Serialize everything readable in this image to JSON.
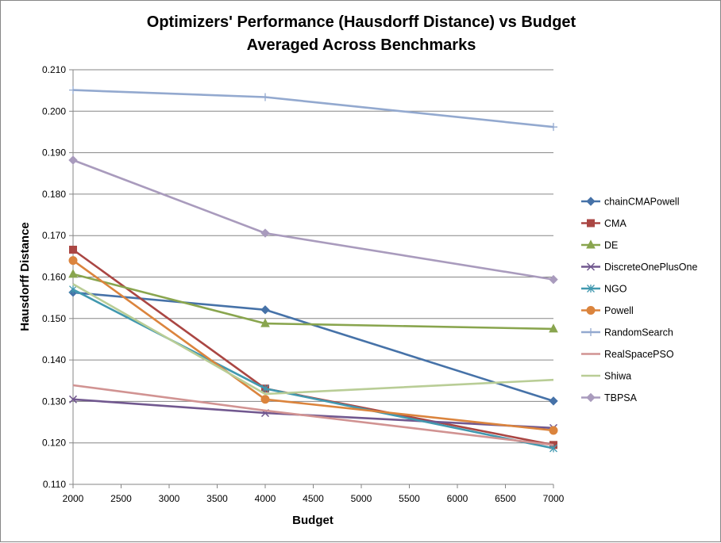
{
  "chart_data": {
    "type": "line",
    "title": "Optimizers' Performance (Hausdorff Distance) vs Budget",
    "subtitle": "Averaged Across Benchmarks",
    "xlabel": "Budget",
    "ylabel": "Hausdorff Distance",
    "xlim": [
      2000,
      7000
    ],
    "ylim": [
      0.11,
      0.21
    ],
    "x_ticks": [
      "2000",
      "2500",
      "3000",
      "3500",
      "4000",
      "4500",
      "5000",
      "5500",
      "6000",
      "6500",
      "7000"
    ],
    "y_ticks": [
      "0.110",
      "0.120",
      "0.130",
      "0.140",
      "0.150",
      "0.160",
      "0.170",
      "0.180",
      "0.190",
      "0.200",
      "0.210"
    ],
    "grid": "horizontal",
    "legend_position": "right",
    "x": [
      2000,
      4000,
      7000
    ],
    "series": [
      {
        "name": "chainCMAPowell",
        "values": [
          0.1563,
          0.1521,
          0.1301
        ],
        "color": "#4672A8",
        "marker": "diamond"
      },
      {
        "name": "CMA",
        "values": [
          0.1666,
          0.1331,
          0.1195
        ],
        "color": "#AA4643",
        "marker": "square"
      },
      {
        "name": "DE",
        "values": [
          0.1607,
          0.1488,
          0.1475
        ],
        "color": "#89A54E",
        "marker": "triangle"
      },
      {
        "name": "DiscreteOnePlusOne",
        "values": [
          0.1305,
          0.1272,
          0.1236
        ],
        "color": "#71588F",
        "marker": "x"
      },
      {
        "name": "NGO",
        "values": [
          0.157,
          0.1331,
          0.1187
        ],
        "color": "#4198AF",
        "marker": "star"
      },
      {
        "name": "Powell",
        "values": [
          0.164,
          0.1305,
          0.123
        ],
        "color": "#DB843D",
        "marker": "circle"
      },
      {
        "name": "RandomSearch",
        "values": [
          0.2051,
          0.2034,
          0.1962
        ],
        "color": "#93A9CF",
        "marker": "plus"
      },
      {
        "name": "RealSpacePSO",
        "values": [
          0.1339,
          0.1278,
          0.1195
        ],
        "color": "#D19392",
        "marker": "none"
      },
      {
        "name": "Shiwa",
        "values": [
          0.1583,
          0.1318,
          0.1352
        ],
        "color": "#B9CD96",
        "marker": "none"
      },
      {
        "name": "TBPSA",
        "values": [
          0.1882,
          0.1706,
          0.1594
        ],
        "color": "#A99BBD",
        "marker": "diamond"
      }
    ]
  }
}
